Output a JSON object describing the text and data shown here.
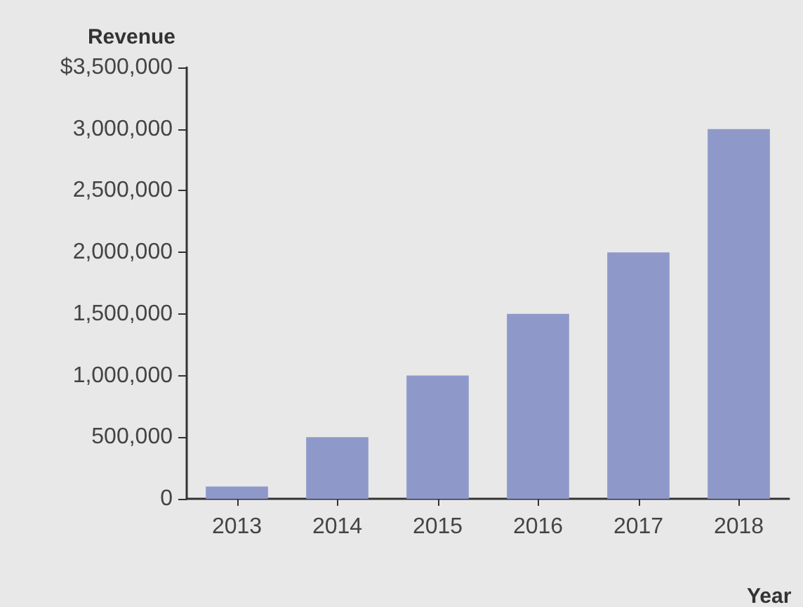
{
  "chart_data": {
    "type": "bar",
    "xlabel": "Year",
    "ylabel": "Revenue",
    "categories": [
      "2013",
      "2014",
      "2015",
      "2016",
      "2017",
      "2018"
    ],
    "values": [
      100000,
      500000,
      1000000,
      1500000,
      2000000,
      3000000
    ],
    "color": "#8f99c9",
    "ylim": [
      0,
      3500000
    ],
    "yticks": [
      {
        "value": 0,
        "label": "0"
      },
      {
        "value": 500000,
        "label": "500,000"
      },
      {
        "value": 1000000,
        "label": "1,000,000"
      },
      {
        "value": 1500000,
        "label": "1,500,000"
      },
      {
        "value": 2000000,
        "label": "2,000,000"
      },
      {
        "value": 2500000,
        "label": "2,500,000"
      },
      {
        "value": 3000000,
        "label": "3,000,000"
      },
      {
        "value": 3500000,
        "label": "$3,500,000"
      }
    ],
    "grid": false
  }
}
